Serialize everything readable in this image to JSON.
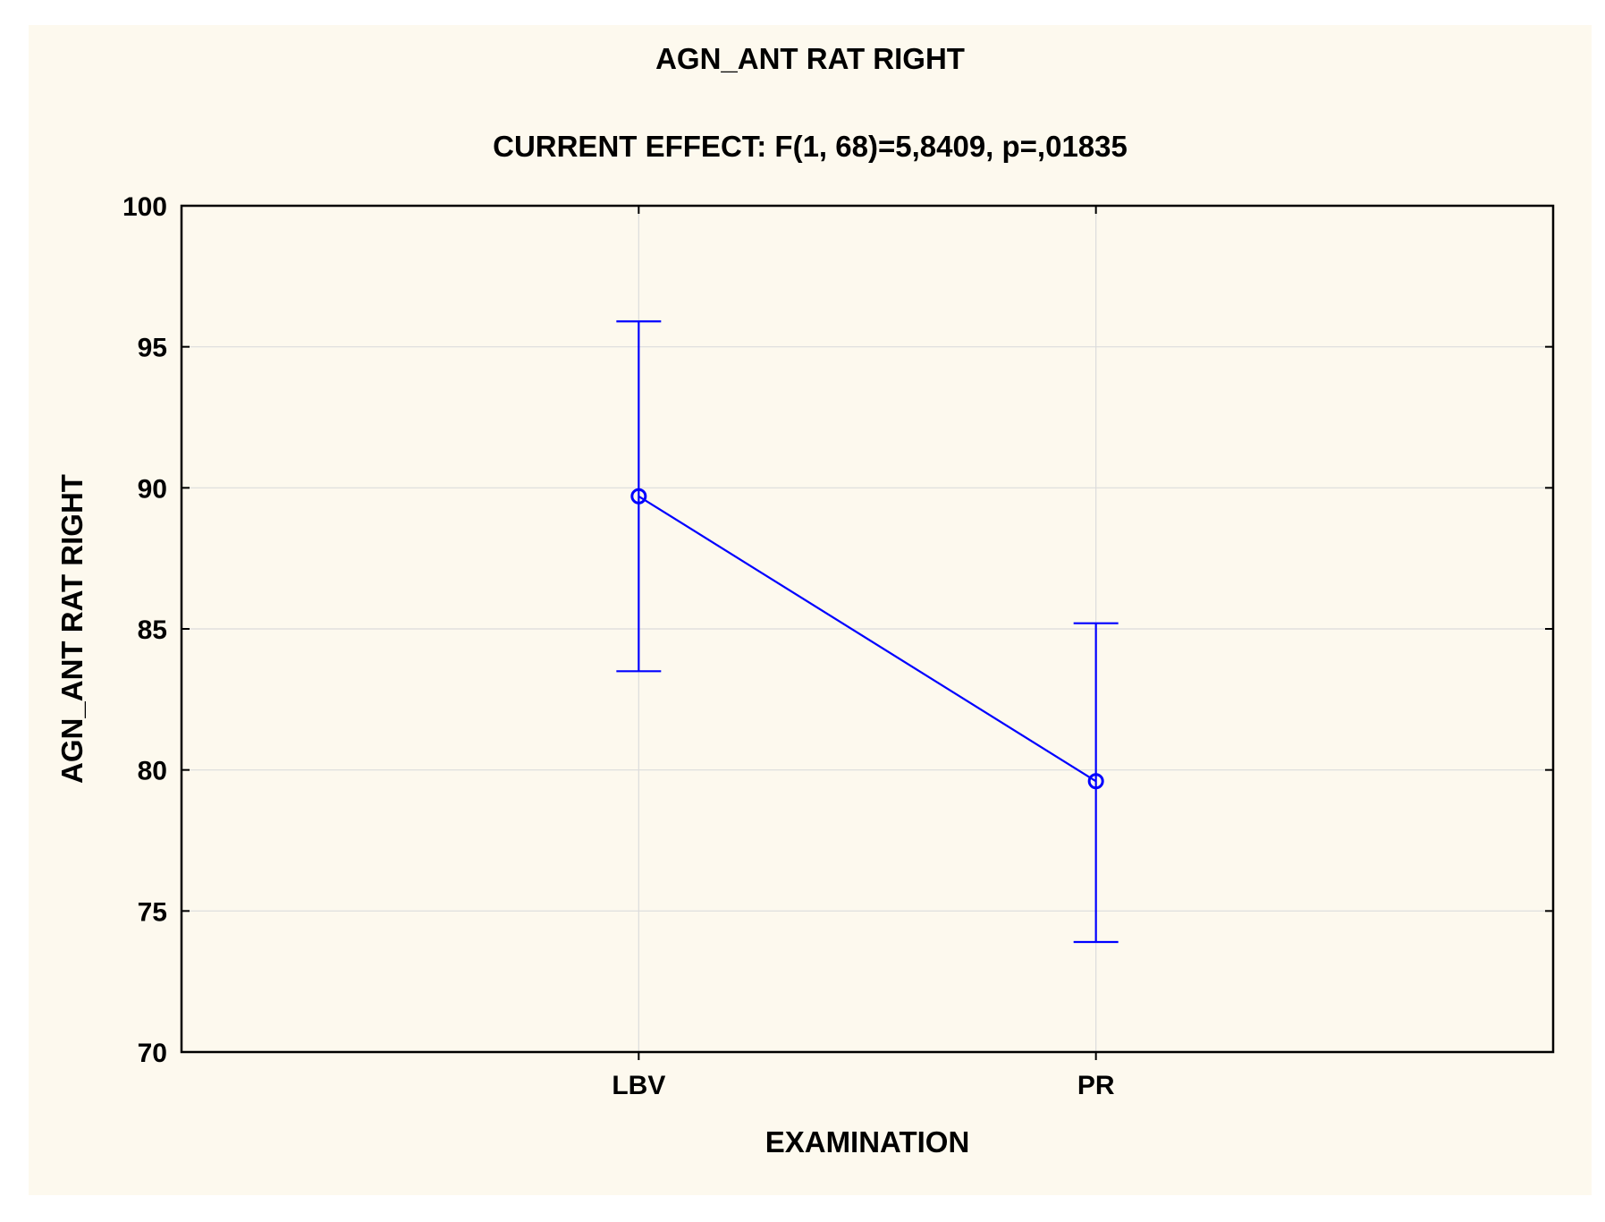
{
  "chart_data": {
    "type": "line",
    "title": "AGN_ANT RAT RIGHT",
    "subtitle": "CURRENT EFFECT: F(1, 68)=5,8409, p=,01835",
    "xlabel": "EXAMINATION",
    "ylabel": "AGN_ANT RAT RIGHT",
    "categories": [
      "LBV",
      "PR"
    ],
    "series": [
      {
        "values": [
          89.7,
          79.6
        ],
        "error_low": [
          83.5,
          73.9
        ],
        "error_high": [
          95.9,
          85.2
        ]
      }
    ],
    "ylim": [
      70,
      100
    ],
    "yticks": [
      100,
      95,
      90,
      85,
      80,
      75,
      70
    ],
    "grid": true,
    "line_color": "#0000ff",
    "background_color": "#fdf9ee"
  }
}
